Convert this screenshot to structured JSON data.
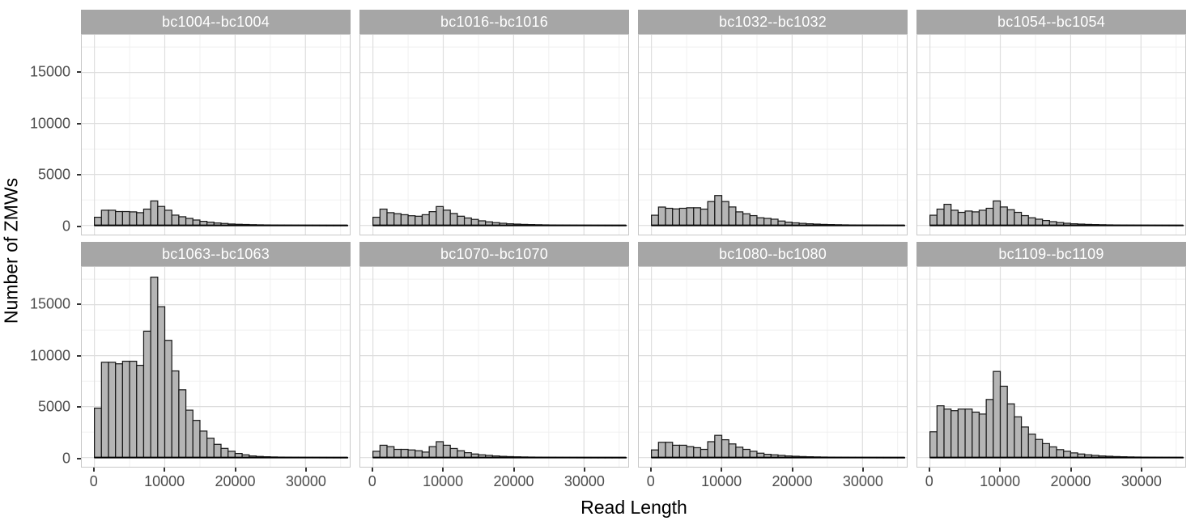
{
  "colors": {
    "bar_fill": "#b5b5b5",
    "bar_stroke": "#1a1a1a",
    "strip_bg": "#a6a6a6",
    "strip_text": "#ffffff",
    "grid_major": "#dedede",
    "grid_minor": "#efefef",
    "panel_border": "#c8c8c8",
    "axis_text": "#4d4d4d",
    "axis_title": "#000000",
    "tick_mark": "#333333",
    "baseline": "#000000"
  },
  "chart_data": {
    "type": "bar",
    "title": "",
    "xlabel": "Read Length",
    "ylabel": "Number of ZMWs",
    "facets_layout": {
      "rows": 2,
      "cols": 4
    },
    "grid": "on",
    "legend": "none",
    "bin_width": 1000,
    "bin_start": 0,
    "x_axis": {
      "ticks": [
        0,
        10000,
        20000,
        30000
      ],
      "minor": [
        5000,
        15000,
        25000,
        35000
      ],
      "min": -1800,
      "max": 36300
    },
    "y_axis": {
      "ticks": [
        0,
        5000,
        10000,
        15000
      ],
      "minor": [
        2500,
        7500,
        12500,
        17500
      ],
      "min": -900,
      "max": 18700
    },
    "panels": [
      {
        "label": "bc1004--bc1004",
        "values": [
          800,
          1490,
          1490,
          1360,
          1360,
          1330,
          1250,
          1600,
          2400,
          1860,
          1490,
          1010,
          850,
          690,
          530,
          400,
          320,
          240,
          190,
          140,
          110,
          90,
          70,
          55,
          45,
          35,
          30,
          25,
          20,
          15,
          12,
          10,
          8,
          6,
          5,
          4
        ]
      },
      {
        "label": "bc1016--bc1016",
        "values": [
          800,
          1600,
          1250,
          1150,
          1050,
          950,
          900,
          1050,
          1350,
          1850,
          1500,
          1170,
          900,
          730,
          590,
          450,
          350,
          270,
          210,
          160,
          130,
          100,
          80,
          65,
          50,
          40,
          32,
          26,
          21,
          17,
          13,
          11,
          9,
          7,
          6,
          5
        ]
      },
      {
        "label": "bc1032--bc1032",
        "values": [
          1000,
          1800,
          1680,
          1620,
          1680,
          1730,
          1730,
          1600,
          2340,
          2930,
          2340,
          1810,
          1330,
          1140,
          960,
          750,
          690,
          610,
          430,
          320,
          250,
          200,
          160,
          130,
          100,
          80,
          65,
          52,
          42,
          34,
          27,
          22,
          18,
          14,
          11,
          9
        ]
      },
      {
        "label": "bc1054--bc1054",
        "values": [
          1000,
          1600,
          2070,
          1490,
          1280,
          1410,
          1330,
          1490,
          1680,
          2400,
          1810,
          1540,
          1280,
          960,
          750,
          610,
          480,
          370,
          280,
          210,
          160,
          130,
          100,
          80,
          65,
          50,
          40,
          32,
          26,
          21,
          17,
          13,
          11,
          9,
          7,
          6
        ]
      },
      {
        "label": "bc1063--bc1063",
        "values": [
          4850,
          9350,
          9350,
          9200,
          9450,
          9450,
          9050,
          12400,
          17700,
          14800,
          11500,
          8500,
          6650,
          4650,
          3650,
          2600,
          1900,
          1300,
          900,
          620,
          400,
          270,
          160,
          110,
          80,
          60,
          45,
          35,
          27,
          21,
          16,
          13,
          10,
          8,
          6,
          5
        ]
      },
      {
        "label": "bc1070--bc1070",
        "values": [
          620,
          1210,
          1075,
          805,
          805,
          750,
          670,
          540,
          1075,
          1560,
          1210,
          890,
          670,
          480,
          350,
          270,
          215,
          160,
          120,
          95,
          75,
          60,
          48,
          38,
          30,
          24,
          19,
          15,
          12,
          10,
          8,
          6,
          5,
          4,
          3,
          3
        ]
      },
      {
        "label": "bc1080--bc1080",
        "values": [
          750,
          1500,
          1500,
          1210,
          1210,
          1075,
          970,
          805,
          1560,
          2180,
          1750,
          1340,
          1020,
          805,
          620,
          430,
          320,
          270,
          215,
          160,
          130,
          100,
          80,
          64,
          51,
          41,
          33,
          26,
          21,
          17,
          13,
          11,
          9,
          7,
          6,
          5
        ]
      },
      {
        "label": "bc1109--bc1109",
        "values": [
          2530,
          5080,
          4760,
          4600,
          4760,
          4760,
          4460,
          4270,
          5700,
          8450,
          7000,
          5270,
          4000,
          3000,
          2300,
          1780,
          1370,
          1050,
          780,
          620,
          460,
          350,
          270,
          215,
          160,
          130,
          100,
          80,
          62,
          50,
          40,
          32,
          25,
          20,
          16,
          13
        ]
      }
    ]
  }
}
